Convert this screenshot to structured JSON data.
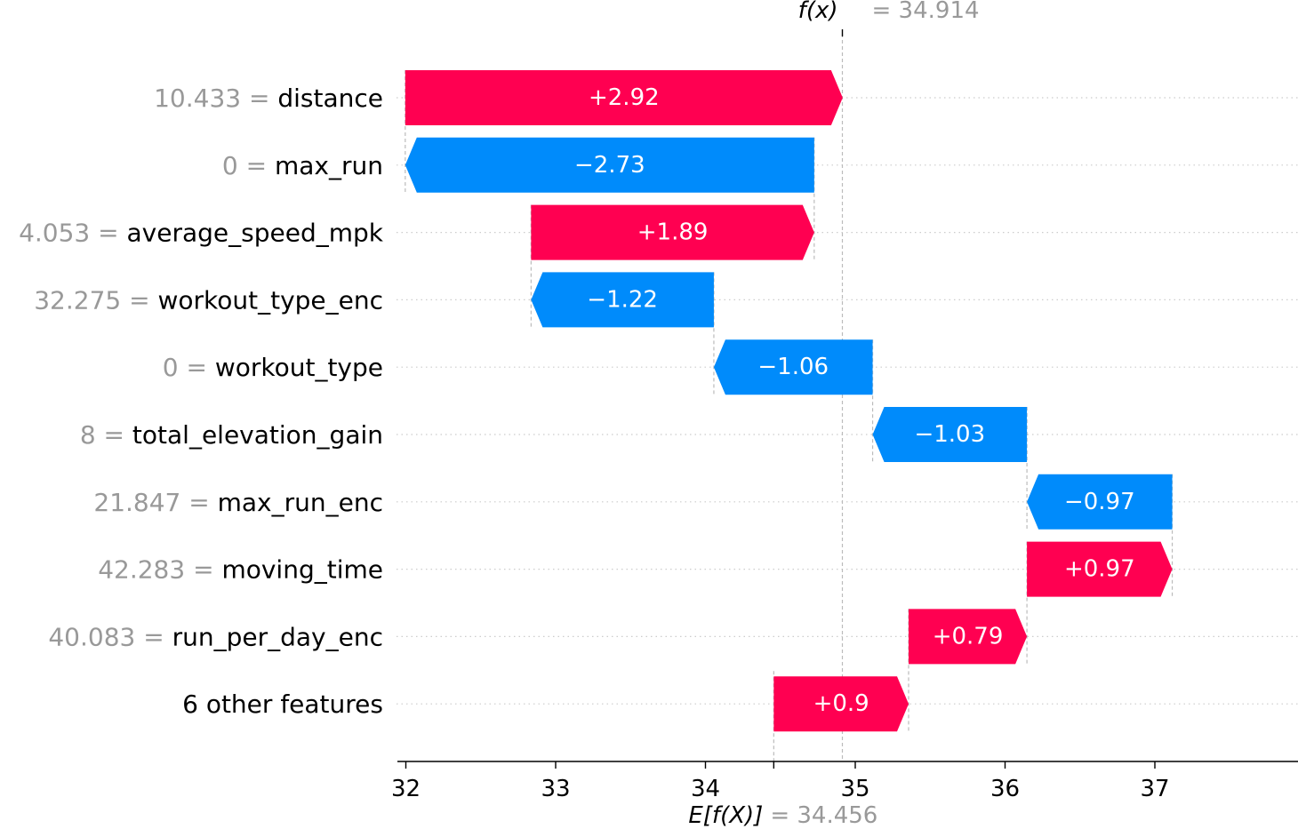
{
  "chart_data": {
    "type": "waterfall",
    "base_value": 34.456,
    "output_value": 34.914,
    "base_label_text": "E[f(X)]",
    "output_label_text": "f(x)",
    "base_annotation": "= 34.456",
    "output_annotation": "= 34.914",
    "xlim": [
      31.95,
      37.95
    ],
    "x_ticks": [
      32,
      33,
      34,
      35,
      36,
      37
    ],
    "x_tick_labels": [
      "32",
      "33",
      "34",
      "35",
      "36",
      "37"
    ],
    "features": [
      {
        "value_text": "10.433",
        "name": "distance",
        "shap": 2.92,
        "label": "+2.92"
      },
      {
        "value_text": "0",
        "name": "max_run",
        "shap": -2.73,
        "label": "−2.73"
      },
      {
        "value_text": "4.053",
        "name": "average_speed_mpk",
        "shap": 1.89,
        "label": "+1.89"
      },
      {
        "value_text": "32.275",
        "name": "workout_type_enc",
        "shap": -1.22,
        "label": "−1.22"
      },
      {
        "value_text": "0",
        "name": "workout_type",
        "shap": -1.06,
        "label": "−1.06"
      },
      {
        "value_text": "8",
        "name": "total_elevation_gain",
        "shap": -1.03,
        "label": "−1.03"
      },
      {
        "value_text": "21.847",
        "name": "max_run_enc",
        "shap": -0.97,
        "label": "−0.97"
      },
      {
        "value_text": "42.283",
        "name": "moving_time",
        "shap": 0.97,
        "label": "+0.97"
      },
      {
        "value_text": "40.083",
        "name": "run_per_day_enc",
        "shap": 0.79,
        "label": "+0.79"
      },
      {
        "value_text": "",
        "name": "6 other features",
        "shap": 0.9,
        "label": "+0.9"
      }
    ],
    "colors": {
      "positive": "#ff0051",
      "negative": "#008bfb",
      "feature_value": "#999999",
      "axis": "#000000",
      "grid": "#cccccc"
    },
    "grid": "dotted-horizontal"
  }
}
